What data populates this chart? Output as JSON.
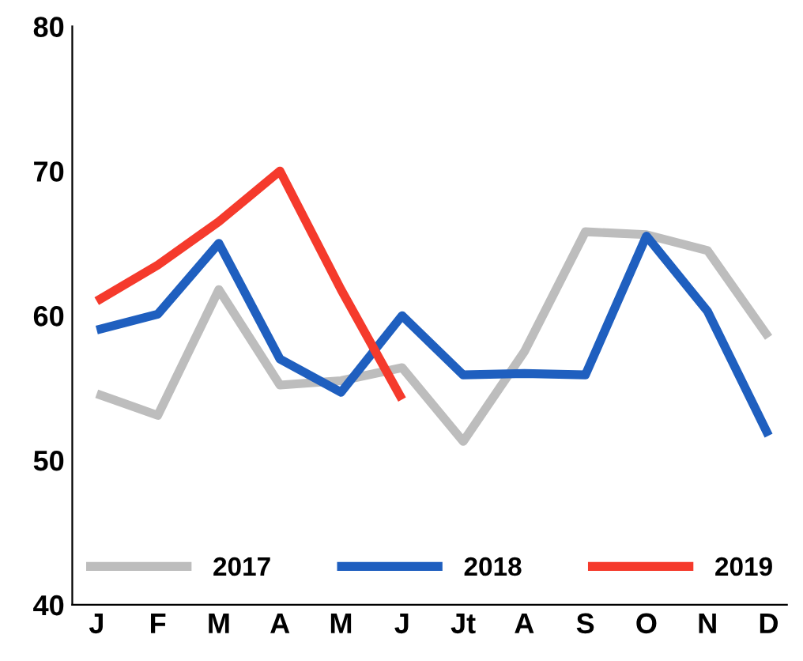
{
  "chart_data": {
    "type": "line",
    "categories": [
      "J",
      "F",
      "M",
      "A",
      "M",
      "J",
      "Jt",
      "A",
      "S",
      "O",
      "N",
      "D"
    ],
    "series": [
      {
        "name": "2017",
        "color": "#bdbdbd",
        "values": [
          54.6,
          53.1,
          61.8,
          55.2,
          55.5,
          56.4,
          51.3,
          57.5,
          65.8,
          65.6,
          64.5,
          58.5
        ]
      },
      {
        "name": "2018",
        "color": "#1f5fbf",
        "values": [
          59,
          60.1,
          65,
          57,
          54.7,
          60,
          55.9,
          56,
          55.9,
          65.5,
          60.3,
          51.7
        ]
      },
      {
        "name": "2019",
        "color": "#f53a2c",
        "values": [
          61,
          63.5,
          66.5,
          70,
          61.8,
          54.2,
          null,
          null,
          null,
          null,
          null,
          null
        ]
      }
    ],
    "ylim": [
      40,
      80
    ],
    "yticks": [
      40,
      50,
      60,
      70,
      80
    ],
    "grid": false,
    "legend": "bottom",
    "marker": "none",
    "line_style": "solid"
  }
}
